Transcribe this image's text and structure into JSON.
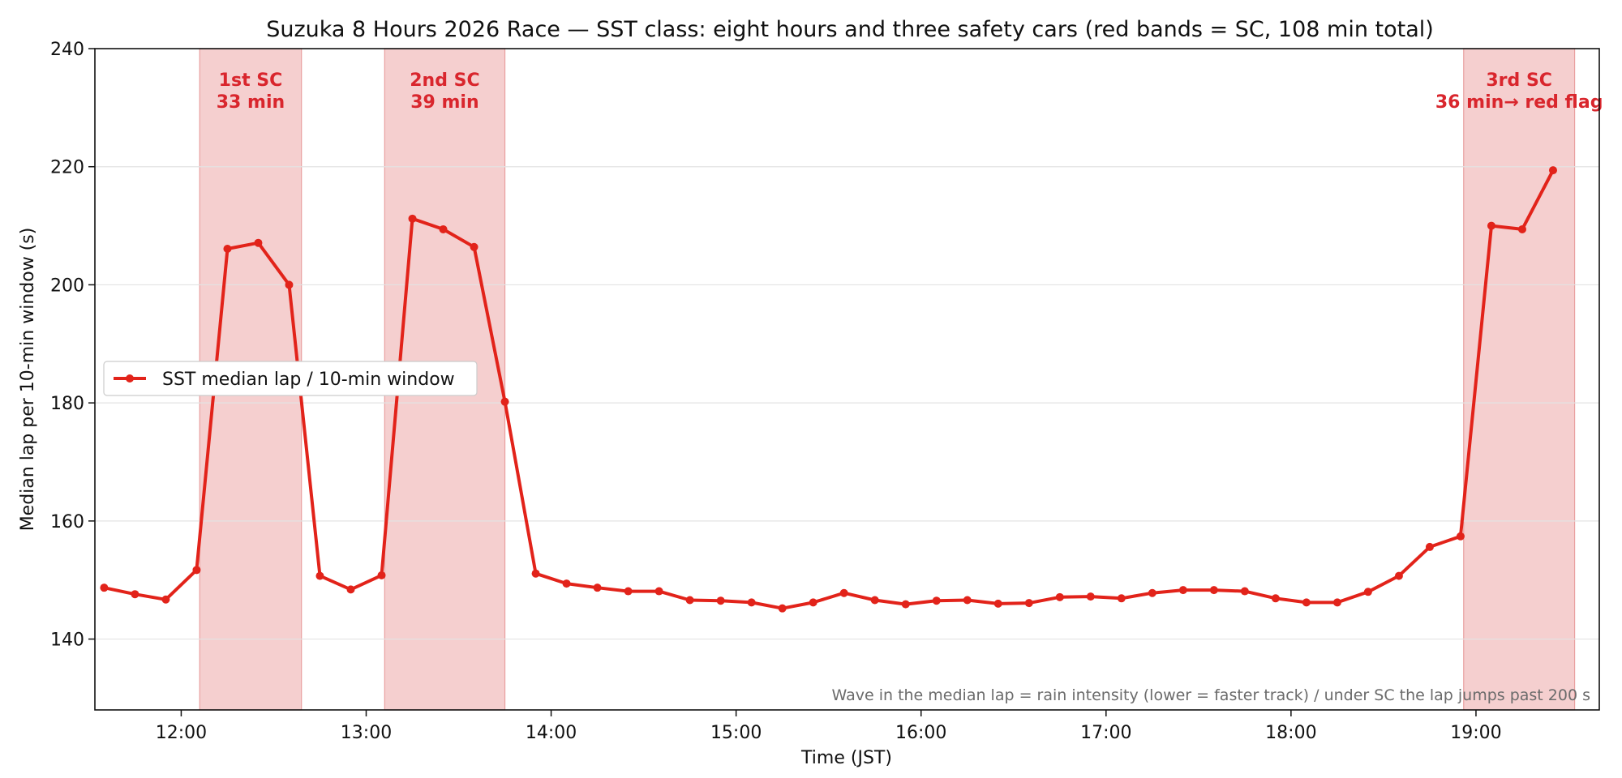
{
  "chart_data": {
    "type": "line",
    "title": "Suzuka 8 Hours 2026 Race — SST class: eight hours and three safety cars (red bands = SC, 108 min total)",
    "xlabel": "Time (JST)",
    "ylabel": "Median lap per 10-min window (s)",
    "xlim": [
      "11:32",
      "19:40"
    ],
    "ylim": [
      128,
      240
    ],
    "x_ticks": [
      "12:00",
      "13:00",
      "14:00",
      "15:00",
      "16:00",
      "17:00",
      "18:00",
      "19:00"
    ],
    "y_ticks": [
      140,
      160,
      180,
      200,
      220,
      240
    ],
    "grid": "horizontal",
    "legend_position": "center-left",
    "annotation": "Wave in the median lap = rain intensity (lower = faster track) / under SC the lap jumps past 200 s",
    "colors": {
      "series": "#e2231a",
      "band_fill": "#f5cfcf",
      "band_edge": "#e9a0a0",
      "label": "#d9262d",
      "grid": "#e3e3e3",
      "note": "#6b6b6b"
    },
    "safety_cars": [
      {
        "start": "12:06",
        "end": "12:39",
        "label_line1": "1st SC",
        "label_line2": "33 min"
      },
      {
        "start": "13:06",
        "end": "13:45",
        "label_line1": "2nd SC",
        "label_line2": "39 min"
      },
      {
        "start": "18:56",
        "end": "19:32",
        "label_line1": "3rd SC",
        "label_line2": "36 min→ red flag"
      }
    ],
    "series": [
      {
        "name": "SST median lap / 10-min window",
        "x": [
          "11:35",
          "11:45",
          "11:55",
          "12:05",
          "12:15",
          "12:25",
          "12:35",
          "12:45",
          "12:55",
          "13:05",
          "13:15",
          "13:25",
          "13:35",
          "13:45",
          "13:55",
          "14:05",
          "14:15",
          "14:25",
          "14:35",
          "14:45",
          "14:55",
          "15:05",
          "15:15",
          "15:25",
          "15:35",
          "15:45",
          "15:55",
          "16:05",
          "16:15",
          "16:25",
          "16:35",
          "16:45",
          "16:55",
          "17:05",
          "17:15",
          "17:25",
          "17:35",
          "17:45",
          "17:55",
          "18:05",
          "18:15",
          "18:25",
          "18:35",
          "18:45",
          "18:55",
          "19:05",
          "19:15",
          "19:25"
        ],
        "y": [
          148.7,
          147.6,
          146.7,
          151.7,
          206.1,
          207.1,
          200.0,
          150.7,
          148.4,
          150.8,
          211.2,
          209.4,
          206.4,
          180.2,
          151.1,
          149.4,
          148.7,
          148.1,
          148.1,
          146.6,
          146.5,
          146.2,
          145.2,
          146.2,
          147.8,
          146.6,
          145.9,
          146.5,
          146.6,
          146.0,
          146.1,
          147.1,
          147.2,
          146.9,
          147.8,
          148.3,
          148.3,
          148.1,
          146.9,
          146.2,
          146.2,
          148.0,
          150.7,
          155.6,
          157.4,
          210.0,
          209.4,
          219.4
        ]
      }
    ]
  }
}
